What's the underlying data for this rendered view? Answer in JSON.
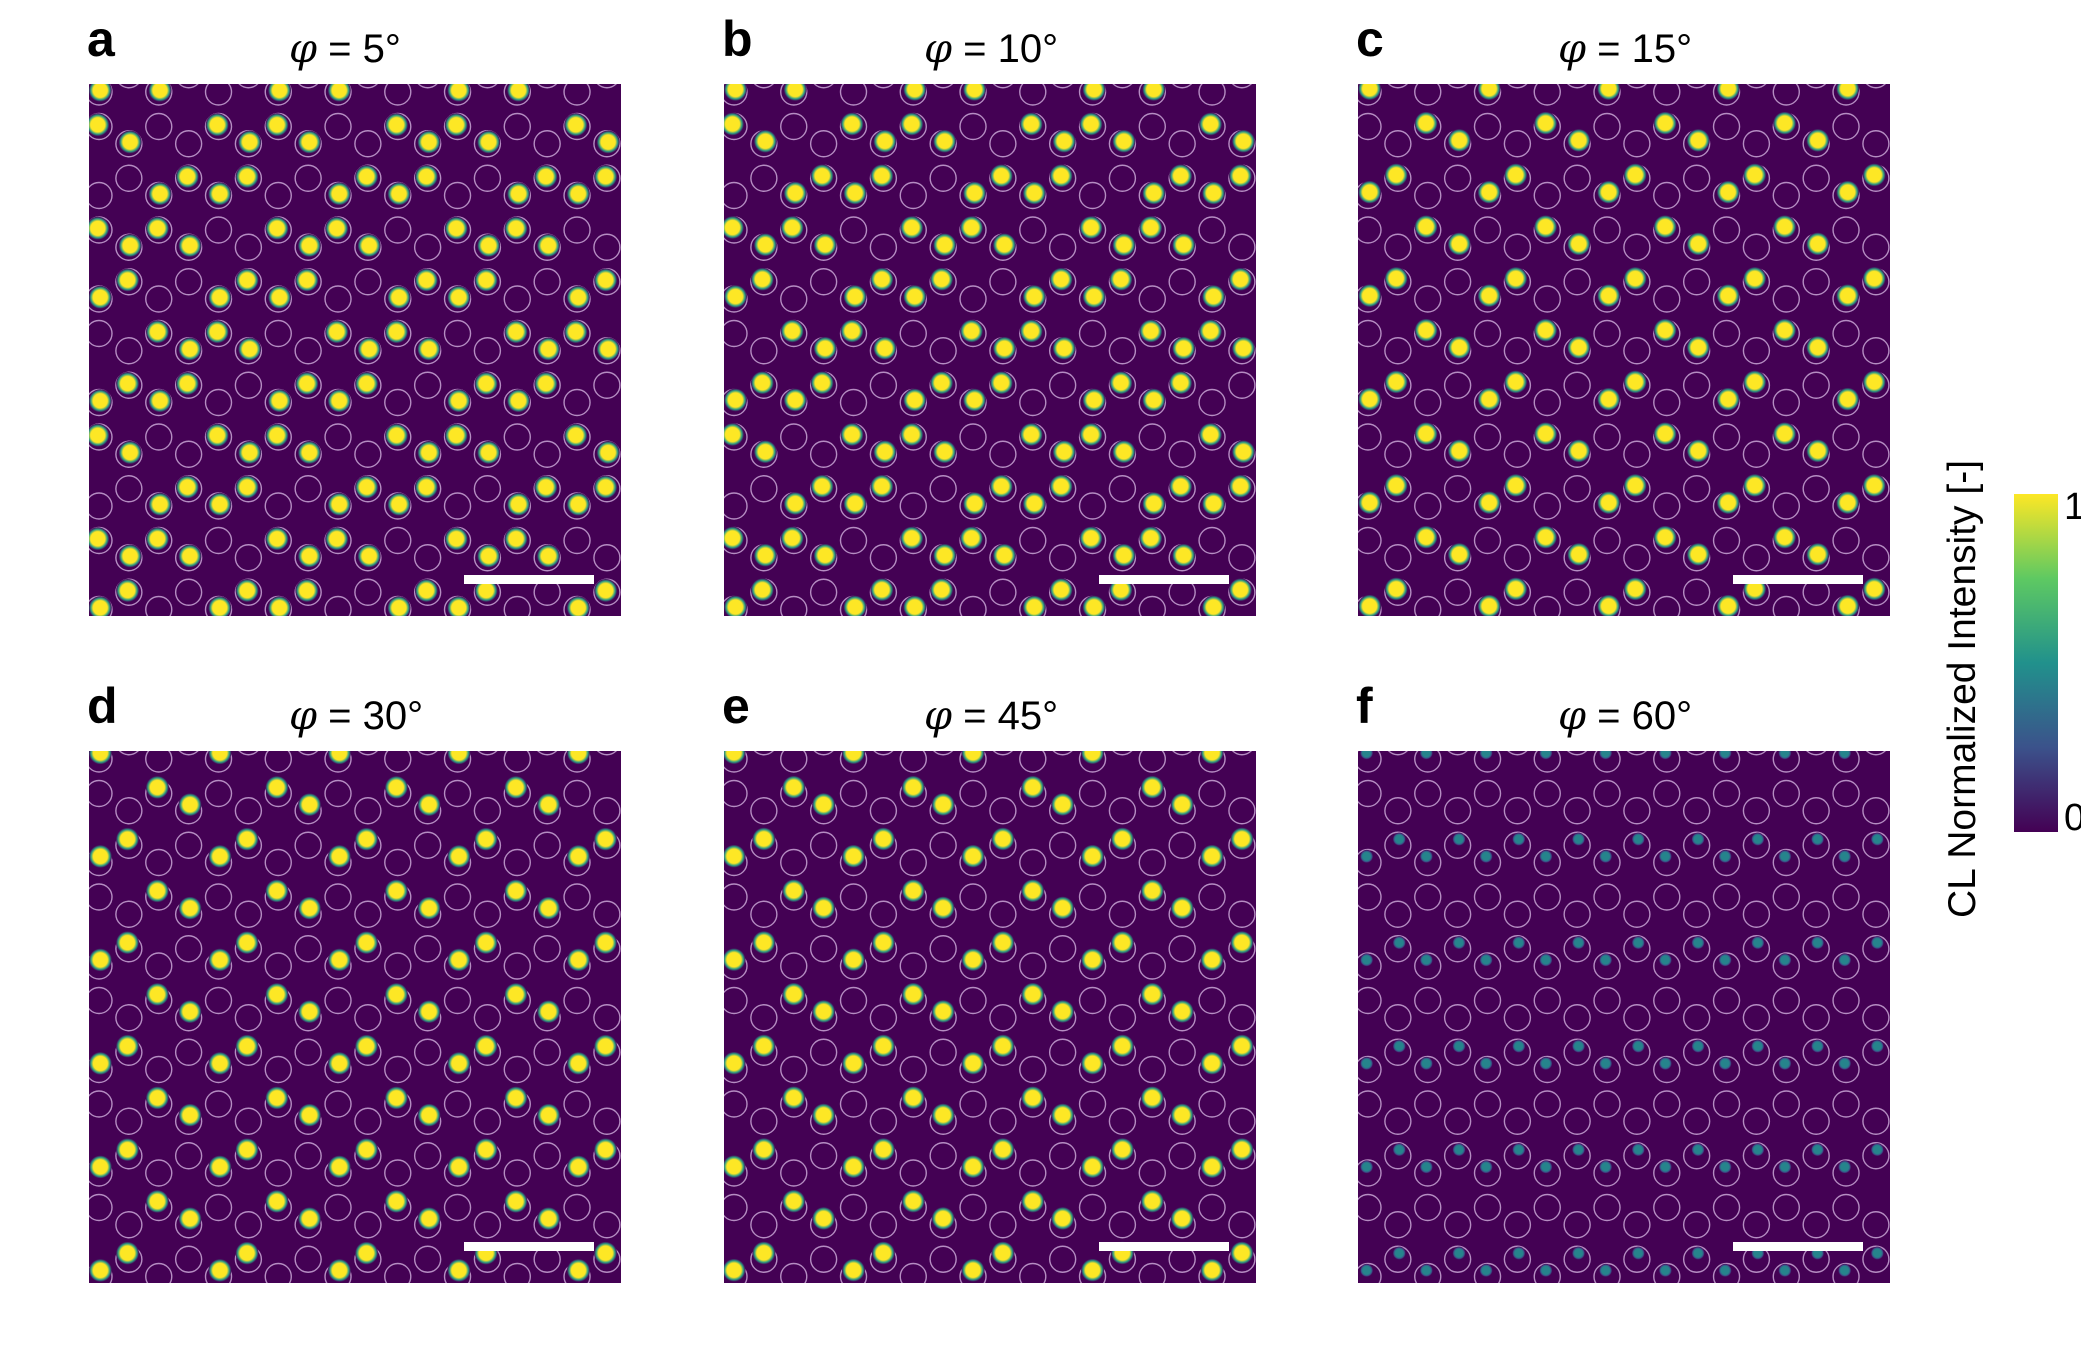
{
  "panels": [
    {
      "letter": "a",
      "phi_symbol": "φ",
      "angle_text": " = 5°",
      "twist_deg": 5,
      "peak_intensity": 1.0
    },
    {
      "letter": "b",
      "phi_symbol": "φ",
      "angle_text": " = 10°",
      "twist_deg": 10,
      "peak_intensity": 1.0
    },
    {
      "letter": "c",
      "phi_symbol": "φ",
      "angle_text": " = 15°",
      "twist_deg": 15,
      "peak_intensity": 1.0
    },
    {
      "letter": "d",
      "phi_symbol": "φ",
      "angle_text": " = 30°",
      "twist_deg": 30,
      "peak_intensity": 1.0
    },
    {
      "letter": "e",
      "phi_symbol": "φ",
      "angle_text": " = 45°",
      "twist_deg": 45,
      "peak_intensity": 1.0
    },
    {
      "letter": "f",
      "phi_symbol": "φ",
      "angle_text": " = 60°",
      "twist_deg": 60,
      "peak_intensity": 0.45
    }
  ],
  "colorbar": {
    "label": "CL Normalized Intensity [-]",
    "max_label": "1",
    "min_label": "0",
    "range": [
      0,
      1
    ],
    "colormap": "viridis",
    "colors": [
      "#440154",
      "#3b528b",
      "#21918c",
      "#5ec962",
      "#fde725"
    ]
  },
  "colors": {
    "background": "#440154",
    "ring": "#c9a6d6",
    "spot": "#fde725",
    "scale_bar": "#ffffff"
  }
}
